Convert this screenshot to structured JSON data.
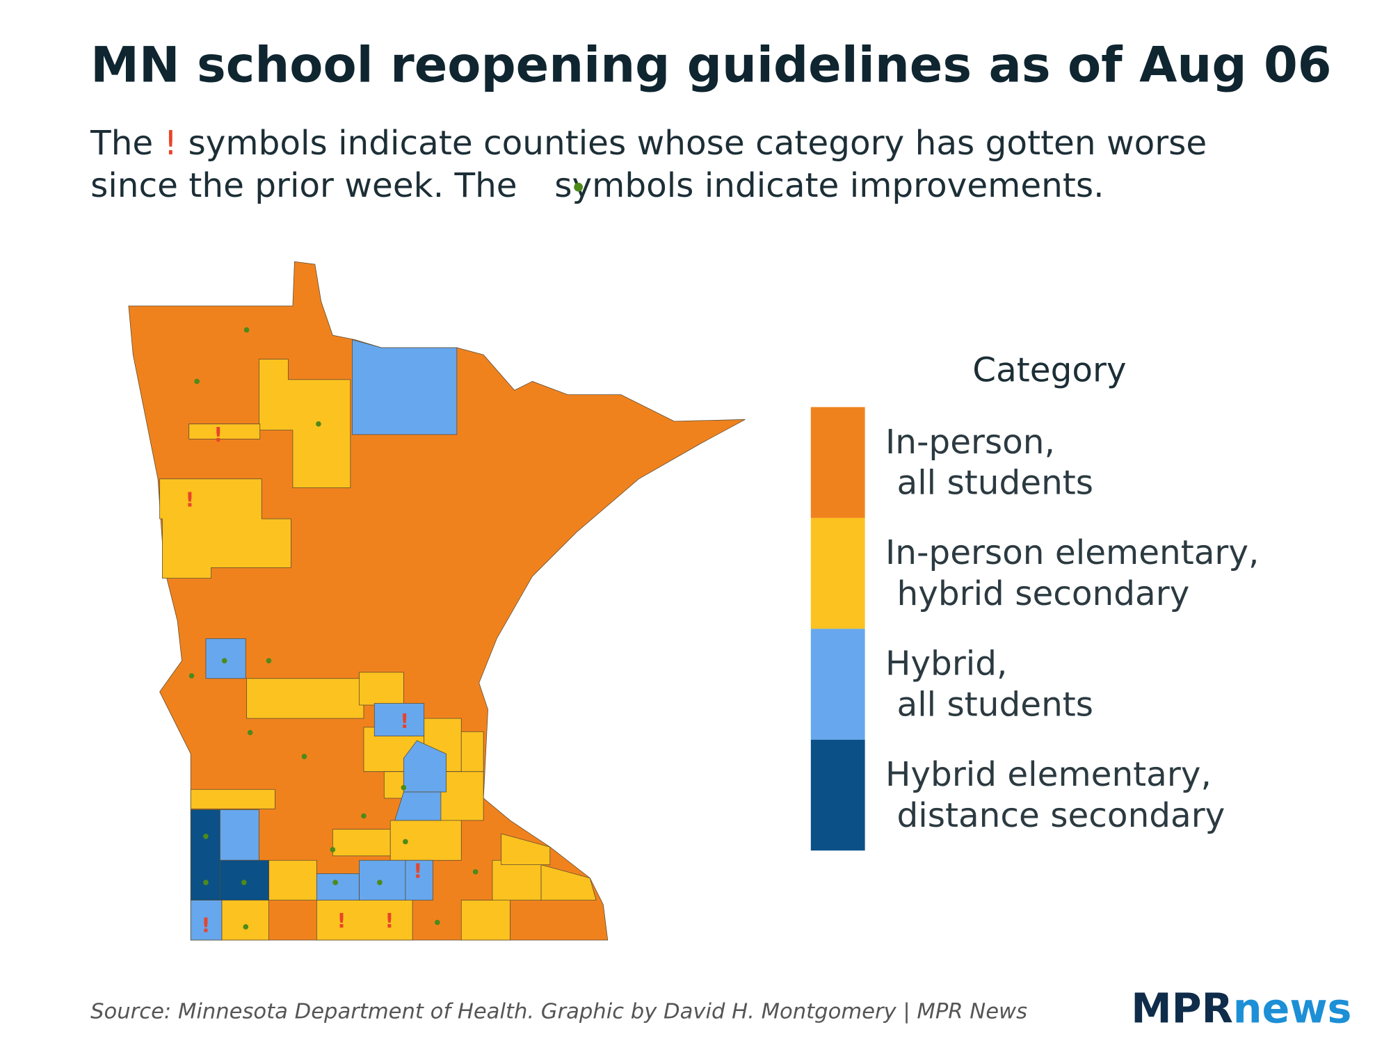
{
  "title": "MN school reopening guidelines as of Aug 06",
  "subtitle": {
    "line1": {
      "before": "The",
      "symbol": "!",
      "after": "symbols indicate counties whose category has gotten worse"
    },
    "line2": {
      "before": "since the prior week. The",
      "after": "symbols indicate improvements."
    }
  },
  "worse_symbol": "!",
  "improved_color": "#4d8a1a",
  "worse_color": "#e8442a",
  "legend": {
    "title": "Category",
    "items": [
      {
        "lines": [
          "In-person,",
          "all students"
        ],
        "color": "#f0821e"
      },
      {
        "lines": [
          "In-person elementary,",
          "hybrid secondary"
        ],
        "color": "#fcc21f"
      },
      {
        "lines": [
          "Hybrid,",
          "all students"
        ],
        "color": "#67a7ed"
      },
      {
        "lines": [
          "Hybrid elementary,",
          "distance secondary"
        ],
        "color": "#0b5087"
      }
    ]
  },
  "source": "Source: Minnesota Department of Health. Graphic by David H. Montgomery | MPR News",
  "logo": {
    "part1": "MPR",
    "part2": "news"
  }
}
